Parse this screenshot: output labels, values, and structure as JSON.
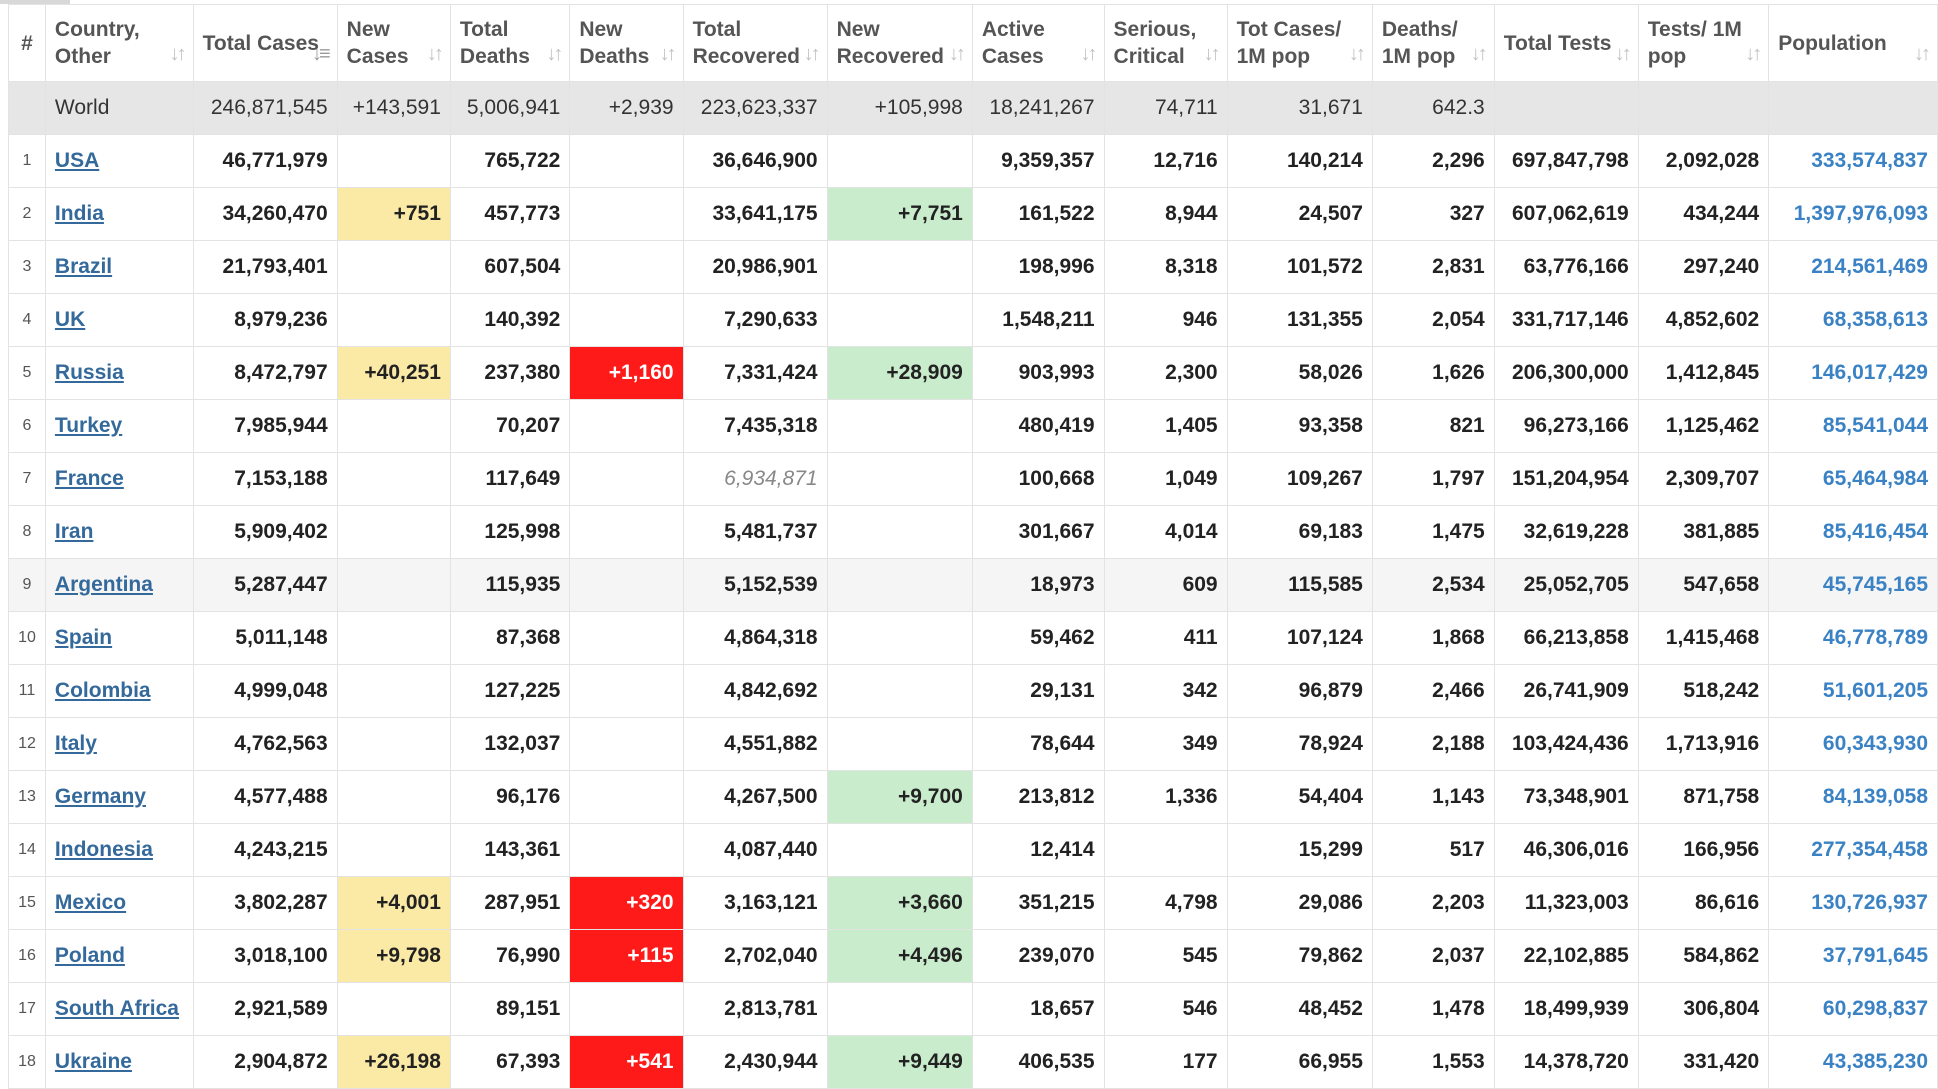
{
  "colors": {
    "new_cases_bg": "#fbeaa6",
    "new_deaths_bg": "#ff1a1a",
    "new_recovered_bg": "#c9eccc",
    "link": "#34699b",
    "population": "#3a82c4",
    "world_row_bg": "#e6e6e6"
  },
  "columns": [
    {
      "key": "idx",
      "label": "#",
      "sortable": false
    },
    {
      "key": "country",
      "label": "Country, Other",
      "sortable": true,
      "sort_icon": "sort-arrows-icon"
    },
    {
      "key": "total_cases",
      "label": "Total Cases",
      "sortable": true,
      "sort_icon": "sort-descending-icon",
      "active_sort": true
    },
    {
      "key": "new_cases",
      "label": "New Cases",
      "sortable": true,
      "sort_icon": "sort-arrows-icon"
    },
    {
      "key": "total_deaths",
      "label": "Total Deaths",
      "sortable": true,
      "sort_icon": "sort-arrows-icon"
    },
    {
      "key": "new_deaths",
      "label": "New Deaths",
      "sortable": true,
      "sort_icon": "sort-arrows-icon"
    },
    {
      "key": "total_recovered",
      "label": "Total Recovered",
      "sortable": true,
      "sort_icon": "sort-arrows-icon"
    },
    {
      "key": "new_recovered",
      "label": "New Recovered",
      "sortable": true,
      "sort_icon": "sort-arrows-icon"
    },
    {
      "key": "active_cases",
      "label": "Active Cases",
      "sortable": true,
      "sort_icon": "sort-arrows-icon"
    },
    {
      "key": "serious_critical",
      "label": "Serious, Critical",
      "sortable": true,
      "sort_icon": "sort-arrows-icon"
    },
    {
      "key": "tot_cases_1m",
      "label": "Tot Cases/ 1M pop",
      "sortable": true,
      "sort_icon": "sort-arrows-icon"
    },
    {
      "key": "deaths_1m",
      "label": "Deaths/ 1M pop",
      "sortable": true,
      "sort_icon": "sort-arrows-icon"
    },
    {
      "key": "total_tests",
      "label": "Total Tests",
      "sortable": true,
      "sort_icon": "sort-arrows-icon"
    },
    {
      "key": "tests_1m",
      "label": "Tests/ 1M pop",
      "sortable": true,
      "sort_icon": "sort-arrows-icon"
    },
    {
      "key": "population",
      "label": "Population",
      "sortable": true,
      "sort_icon": "sort-arrows-icon"
    }
  ],
  "world": {
    "country": "World",
    "total_cases": "246,871,545",
    "new_cases": "+143,591",
    "total_deaths": "5,006,941",
    "new_deaths": "+2,939",
    "total_recovered": "223,623,337",
    "new_recovered": "+105,998",
    "active_cases": "18,241,267",
    "serious_critical": "74,711",
    "tot_cases_1m": "31,671",
    "deaths_1m": "642.3",
    "total_tests": "",
    "tests_1m": "",
    "population": ""
  },
  "rows": [
    {
      "idx": "1",
      "country": "USA",
      "total_cases": "46,771,979",
      "new_cases": "",
      "total_deaths": "765,722",
      "new_deaths": "",
      "total_recovered": "36,646,900",
      "new_recovered": "",
      "active_cases": "9,359,357",
      "serious_critical": "12,716",
      "tot_cases_1m": "140,214",
      "deaths_1m": "2,296",
      "total_tests": "697,847,798",
      "tests_1m": "2,092,028",
      "population": "333,574,837"
    },
    {
      "idx": "2",
      "country": "India",
      "total_cases": "34,260,470",
      "new_cases": "+751",
      "total_deaths": "457,773",
      "new_deaths": "",
      "total_recovered": "33,641,175",
      "new_recovered": "+7,751",
      "active_cases": "161,522",
      "serious_critical": "8,944",
      "tot_cases_1m": "24,507",
      "deaths_1m": "327",
      "total_tests": "607,062,619",
      "tests_1m": "434,244",
      "population": "1,397,976,093"
    },
    {
      "idx": "3",
      "country": "Brazil",
      "total_cases": "21,793,401",
      "new_cases": "",
      "total_deaths": "607,504",
      "new_deaths": "",
      "total_recovered": "20,986,901",
      "new_recovered": "",
      "active_cases": "198,996",
      "serious_critical": "8,318",
      "tot_cases_1m": "101,572",
      "deaths_1m": "2,831",
      "total_tests": "63,776,166",
      "tests_1m": "297,240",
      "population": "214,561,469"
    },
    {
      "idx": "4",
      "country": "UK",
      "total_cases": "8,979,236",
      "new_cases": "",
      "total_deaths": "140,392",
      "new_deaths": "",
      "total_recovered": "7,290,633",
      "new_recovered": "",
      "active_cases": "1,548,211",
      "serious_critical": "946",
      "tot_cases_1m": "131,355",
      "deaths_1m": "2,054",
      "total_tests": "331,717,146",
      "tests_1m": "4,852,602",
      "population": "68,358,613"
    },
    {
      "idx": "5",
      "country": "Russia",
      "total_cases": "8,472,797",
      "new_cases": "+40,251",
      "total_deaths": "237,380",
      "new_deaths": "+1,160",
      "total_recovered": "7,331,424",
      "new_recovered": "+28,909",
      "active_cases": "903,993",
      "serious_critical": "2,300",
      "tot_cases_1m": "58,026",
      "deaths_1m": "1,626",
      "total_tests": "206,300,000",
      "tests_1m": "1,412,845",
      "population": "146,017,429"
    },
    {
      "idx": "6",
      "country": "Turkey",
      "total_cases": "7,985,944",
      "new_cases": "",
      "total_deaths": "70,207",
      "new_deaths": "",
      "total_recovered": "7,435,318",
      "new_recovered": "",
      "active_cases": "480,419",
      "serious_critical": "1,405",
      "tot_cases_1m": "93,358",
      "deaths_1m": "821",
      "total_tests": "96,273,166",
      "tests_1m": "1,125,462",
      "population": "85,541,044"
    },
    {
      "idx": "7",
      "country": "France",
      "total_cases": "7,153,188",
      "new_cases": "",
      "total_deaths": "117,649",
      "new_deaths": "",
      "total_recovered": "6,934,871",
      "recovered_estimated": true,
      "new_recovered": "",
      "active_cases": "100,668",
      "serious_critical": "1,049",
      "tot_cases_1m": "109,267",
      "deaths_1m": "1,797",
      "total_tests": "151,204,954",
      "tests_1m": "2,309,707",
      "population": "65,464,984"
    },
    {
      "idx": "8",
      "country": "Iran",
      "total_cases": "5,909,402",
      "new_cases": "",
      "total_deaths": "125,998",
      "new_deaths": "",
      "total_recovered": "5,481,737",
      "new_recovered": "",
      "active_cases": "301,667",
      "serious_critical": "4,014",
      "tot_cases_1m": "69,183",
      "deaths_1m": "1,475",
      "total_tests": "32,619,228",
      "tests_1m": "381,885",
      "population": "85,416,454"
    },
    {
      "idx": "9",
      "country": "Argentina",
      "total_cases": "5,287,447",
      "new_cases": "",
      "total_deaths": "115,935",
      "new_deaths": "",
      "total_recovered": "5,152,539",
      "new_recovered": "",
      "active_cases": "18,973",
      "serious_critical": "609",
      "tot_cases_1m": "115,585",
      "deaths_1m": "2,534",
      "total_tests": "25,052,705",
      "tests_1m": "547,658",
      "population": "45,745,165"
    },
    {
      "idx": "10",
      "country": "Spain",
      "total_cases": "5,011,148",
      "new_cases": "",
      "total_deaths": "87,368",
      "new_deaths": "",
      "total_recovered": "4,864,318",
      "new_recovered": "",
      "active_cases": "59,462",
      "serious_critical": "411",
      "tot_cases_1m": "107,124",
      "deaths_1m": "1,868",
      "total_tests": "66,213,858",
      "tests_1m": "1,415,468",
      "population": "46,778,789"
    },
    {
      "idx": "11",
      "country": "Colombia",
      "total_cases": "4,999,048",
      "new_cases": "",
      "total_deaths": "127,225",
      "new_deaths": "",
      "total_recovered": "4,842,692",
      "new_recovered": "",
      "active_cases": "29,131",
      "serious_critical": "342",
      "tot_cases_1m": "96,879",
      "deaths_1m": "2,466",
      "total_tests": "26,741,909",
      "tests_1m": "518,242",
      "population": "51,601,205"
    },
    {
      "idx": "12",
      "country": "Italy",
      "total_cases": "4,762,563",
      "new_cases": "",
      "total_deaths": "132,037",
      "new_deaths": "",
      "total_recovered": "4,551,882",
      "new_recovered": "",
      "active_cases": "78,644",
      "serious_critical": "349",
      "tot_cases_1m": "78,924",
      "deaths_1m": "2,188",
      "total_tests": "103,424,436",
      "tests_1m": "1,713,916",
      "population": "60,343,930"
    },
    {
      "idx": "13",
      "country": "Germany",
      "total_cases": "4,577,488",
      "new_cases": "",
      "total_deaths": "96,176",
      "new_deaths": "",
      "total_recovered": "4,267,500",
      "new_recovered": "+9,700",
      "active_cases": "213,812",
      "serious_critical": "1,336",
      "tot_cases_1m": "54,404",
      "deaths_1m": "1,143",
      "total_tests": "73,348,901",
      "tests_1m": "871,758",
      "population": "84,139,058"
    },
    {
      "idx": "14",
      "country": "Indonesia",
      "total_cases": "4,243,215",
      "new_cases": "",
      "total_deaths": "143,361",
      "new_deaths": "",
      "total_recovered": "4,087,440",
      "new_recovered": "",
      "active_cases": "12,414",
      "serious_critical": "",
      "tot_cases_1m": "15,299",
      "deaths_1m": "517",
      "total_tests": "46,306,016",
      "tests_1m": "166,956",
      "population": "277,354,458"
    },
    {
      "idx": "15",
      "country": "Mexico",
      "total_cases": "3,802,287",
      "new_cases": "+4,001",
      "total_deaths": "287,951",
      "new_deaths": "+320",
      "total_recovered": "3,163,121",
      "new_recovered": "+3,660",
      "active_cases": "351,215",
      "serious_critical": "4,798",
      "tot_cases_1m": "29,086",
      "deaths_1m": "2,203",
      "total_tests": "11,323,003",
      "tests_1m": "86,616",
      "population": "130,726,937"
    },
    {
      "idx": "16",
      "country": "Poland",
      "total_cases": "3,018,100",
      "new_cases": "+9,798",
      "total_deaths": "76,990",
      "new_deaths": "+115",
      "total_recovered": "2,702,040",
      "new_recovered": "+4,496",
      "active_cases": "239,070",
      "serious_critical": "545",
      "tot_cases_1m": "79,862",
      "deaths_1m": "2,037",
      "total_tests": "22,102,885",
      "tests_1m": "584,862",
      "population": "37,791,645"
    },
    {
      "idx": "17",
      "country": "South Africa",
      "total_cases": "2,921,589",
      "new_cases": "",
      "total_deaths": "89,151",
      "new_deaths": "",
      "total_recovered": "2,813,781",
      "new_recovered": "",
      "active_cases": "18,657",
      "serious_critical": "546",
      "tot_cases_1m": "48,452",
      "deaths_1m": "1,478",
      "total_tests": "18,499,939",
      "tests_1m": "306,804",
      "population": "60,298,837"
    },
    {
      "idx": "18",
      "country": "Ukraine",
      "total_cases": "2,904,872",
      "new_cases": "+26,198",
      "total_deaths": "67,393",
      "new_deaths": "+541",
      "total_recovered": "2,430,944",
      "new_recovered": "+9,449",
      "active_cases": "406,535",
      "serious_critical": "177",
      "tot_cases_1m": "66,955",
      "deaths_1m": "1,553",
      "total_tests": "14,378,720",
      "tests_1m": "331,420",
      "population": "43,385,230"
    }
  ]
}
